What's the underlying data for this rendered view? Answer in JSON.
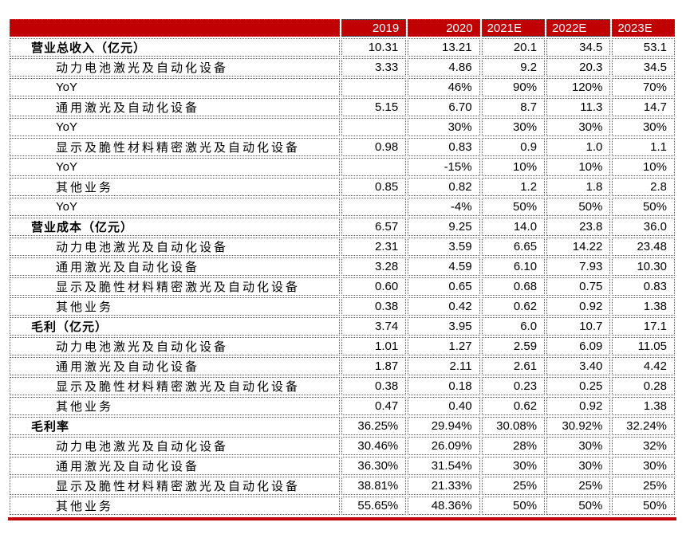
{
  "colors": {
    "header_bg": "#c00000",
    "header_text": "#ffffff",
    "bottom_rule": "#c00000",
    "cell_border": "#595959",
    "body_text": "#000000"
  },
  "table": {
    "header": {
      "label": "",
      "years": [
        "2019",
        "2020",
        "2021E",
        "2022E",
        "2023E"
      ]
    },
    "rows": [
      {
        "type": "section",
        "label": "营业总收入（亿元）",
        "values": [
          "10.31",
          "13.21",
          "20.1",
          "34.5",
          "53.1"
        ]
      },
      {
        "type": "item",
        "label": "动力电池激光及自动化设备",
        "values": [
          "3.33",
          "4.86",
          "9.2",
          "20.3",
          "34.5"
        ]
      },
      {
        "type": "yoy",
        "label": "YoY",
        "values": [
          "",
          "46%",
          "90%",
          "120%",
          "70%"
        ]
      },
      {
        "type": "item",
        "label": "通用激光及自动化设备",
        "values": [
          "5.15",
          "6.70",
          "8.7",
          "11.3",
          "14.7"
        ]
      },
      {
        "type": "yoy",
        "label": "YoY",
        "values": [
          "",
          "30%",
          "30%",
          "30%",
          "30%"
        ]
      },
      {
        "type": "item",
        "label": "显示及脆性材料精密激光及自动化设备",
        "values": [
          "0.98",
          "0.83",
          "0.9",
          "1.0",
          "1.1"
        ]
      },
      {
        "type": "yoy",
        "label": "YoY",
        "values": [
          "",
          "-15%",
          "10%",
          "10%",
          "10%"
        ]
      },
      {
        "type": "item",
        "label": "其他业务",
        "values": [
          "0.85",
          "0.82",
          "1.2",
          "1.8",
          "2.8"
        ]
      },
      {
        "type": "yoy",
        "label": "YoY",
        "values": [
          "",
          "-4%",
          "50%",
          "50%",
          "50%"
        ]
      },
      {
        "type": "section",
        "label": "营业成本（亿元）",
        "values": [
          "6.57",
          "9.25",
          "14.0",
          "23.8",
          "36.0"
        ]
      },
      {
        "type": "item",
        "label": "动力电池激光及自动化设备",
        "values": [
          "2.31",
          "3.59",
          "6.65",
          "14.22",
          "23.48"
        ]
      },
      {
        "type": "item",
        "label": "通用激光及自动化设备",
        "values": [
          "3.28",
          "4.59",
          "6.10",
          "7.93",
          "10.30"
        ]
      },
      {
        "type": "item",
        "label": "显示及脆性材料精密激光及自动化设备",
        "values": [
          "0.60",
          "0.65",
          "0.68",
          "0.75",
          "0.83"
        ]
      },
      {
        "type": "item",
        "label": "其他业务",
        "values": [
          "0.38",
          "0.42",
          "0.62",
          "0.92",
          "1.38"
        ]
      },
      {
        "type": "section",
        "label": "毛利（亿元）",
        "values": [
          "3.74",
          "3.95",
          "6.0",
          "10.7",
          "17.1"
        ]
      },
      {
        "type": "item",
        "label": "动力电池激光及自动化设备",
        "values": [
          "1.01",
          "1.27",
          "2.59",
          "6.09",
          "11.05"
        ]
      },
      {
        "type": "item",
        "label": "通用激光及自动化设备",
        "values": [
          "1.87",
          "2.11",
          "2.61",
          "3.40",
          "4.42"
        ]
      },
      {
        "type": "item",
        "label": "显示及脆性材料精密激光及自动化设备",
        "values": [
          "0.38",
          "0.18",
          "0.23",
          "0.25",
          "0.28"
        ]
      },
      {
        "type": "item",
        "label": "其他业务",
        "values": [
          "0.47",
          "0.40",
          "0.62",
          "0.92",
          "1.38"
        ]
      },
      {
        "type": "section",
        "label": "毛利率",
        "values": [
          "36.25%",
          "29.94%",
          "30.08%",
          "30.92%",
          "32.24%"
        ]
      },
      {
        "type": "item",
        "label": "动力电池激光及自动化设备",
        "values": [
          "30.46%",
          "26.09%",
          "28%",
          "30%",
          "32%"
        ]
      },
      {
        "type": "item",
        "label": "通用激光及自动化设备",
        "values": [
          "36.30%",
          "31.54%",
          "30%",
          "30%",
          "30%"
        ]
      },
      {
        "type": "item",
        "label": "显示及脆性材料精密激光及自动化设备",
        "values": [
          "38.81%",
          "21.33%",
          "25%",
          "25%",
          "25%"
        ]
      },
      {
        "type": "item",
        "label": "其他业务",
        "values": [
          "55.65%",
          "48.36%",
          "50%",
          "50%",
          "50%"
        ]
      }
    ]
  }
}
